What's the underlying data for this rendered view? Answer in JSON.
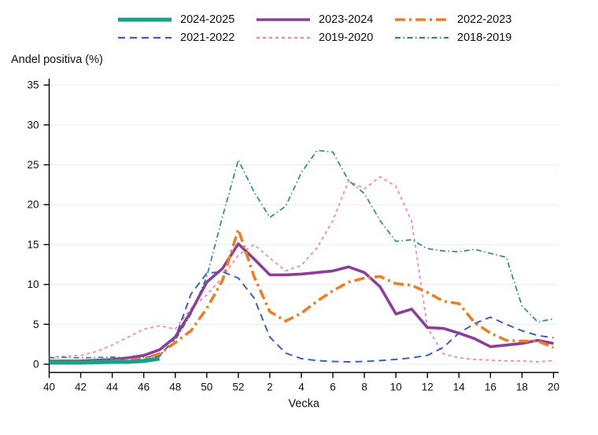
{
  "page": {
    "background": "#ffffff"
  },
  "chart_data": {
    "type": "line",
    "title": "Andel positiva (%)",
    "xlabel": "Vecka",
    "ylim": [
      0,
      35
    ],
    "yticks": [
      0,
      5,
      10,
      15,
      20,
      25,
      30,
      35
    ],
    "grid": "horizontal",
    "grid_color": "#e3eef3",
    "axis_color": "#000000",
    "legend_position": "top",
    "x_categories": [
      "40",
      "41",
      "42",
      "43",
      "44",
      "45",
      "46",
      "47",
      "48",
      "49",
      "50",
      "51",
      "52",
      "1",
      "2",
      "3",
      "4",
      "5",
      "6",
      "7",
      "8",
      "9",
      "10",
      "11",
      "12",
      "13",
      "14",
      "15",
      "16",
      "17",
      "18",
      "19",
      "20"
    ],
    "x_tick_labels": [
      "40",
      "42",
      "44",
      "46",
      "48",
      "50",
      "52",
      "2",
      "4",
      "6",
      "8",
      "10",
      "12",
      "14",
      "16",
      "18",
      "20"
    ],
    "series": [
      {
        "name": "2024-2025",
        "color": "#16A286",
        "dash": "solid",
        "width": 5,
        "values": [
          0.2,
          0.2,
          0.2,
          0.25,
          0.3,
          0.3,
          0.4,
          0.7,
          null,
          null,
          null,
          null,
          null,
          null,
          null,
          null,
          null,
          null,
          null,
          null,
          null,
          null,
          null,
          null,
          null,
          null,
          null,
          null,
          null,
          null,
          null,
          null,
          null
        ]
      },
      {
        "name": "2023-2024",
        "color": "#8C3F99",
        "dash": "solid",
        "width": 3.6,
        "values": [
          0.4,
          0.4,
          0.4,
          0.5,
          0.6,
          0.8,
          1.1,
          1.8,
          3.4,
          6.6,
          10.3,
          12.0,
          15.1,
          13.2,
          11.2,
          11.2,
          11.3,
          11.5,
          11.7,
          12.2,
          11.5,
          9.7,
          6.3,
          6.9,
          4.6,
          4.5,
          3.9,
          3.2,
          2.2,
          2.4,
          2.6,
          3.0,
          2.6
        ]
      },
      {
        "name": "2022-2023",
        "color": "#EF7D22",
        "dash": "13 5 3 5",
        "width": 3.6,
        "values": [
          0.3,
          0.3,
          0.3,
          0.35,
          0.4,
          0.5,
          0.7,
          1.3,
          2.7,
          4.2,
          7.0,
          10.5,
          16.9,
          11.0,
          6.6,
          5.4,
          6.4,
          7.9,
          9.2,
          10.3,
          10.8,
          11.0,
          10.1,
          9.9,
          9.0,
          7.9,
          7.6,
          5.2,
          3.9,
          3.0,
          2.9,
          2.9,
          2.1
        ]
      },
      {
        "name": "2021-2022",
        "color": "#3D5FBF",
        "dash": "9 6",
        "width": 2,
        "values": [
          0.3,
          0.3,
          0.3,
          0.3,
          0.35,
          0.4,
          0.55,
          1.0,
          3.3,
          8.8,
          11.4,
          11.6,
          10.8,
          8.3,
          3.4,
          1.4,
          0.7,
          0.45,
          0.35,
          0.3,
          0.35,
          0.45,
          0.6,
          0.8,
          1.1,
          2.1,
          3.9,
          5.1,
          5.9,
          5.0,
          4.2,
          3.6,
          3.3
        ]
      },
      {
        "name": "2019-2020",
        "color": "#F77FB7",
        "dash": "4 4",
        "width": 1.7,
        "values": [
          0.9,
          1.0,
          1.1,
          1.6,
          2.4,
          3.4,
          4.4,
          4.8,
          4.4,
          7.0,
          8.7,
          10.9,
          13.7,
          15.0,
          13.3,
          11.7,
          12.4,
          14.6,
          18.0,
          23.0,
          22.0,
          23.5,
          22.3,
          17.9,
          4.6,
          1.3,
          0.8,
          0.6,
          0.5,
          0.4,
          0.4,
          0.3,
          0.45
        ]
      },
      {
        "name": "2018-2019",
        "color": "#2A8A85",
        "dash": "7 3.5 1.5 3.5",
        "width": 1.7,
        "values": [
          0.8,
          0.85,
          0.8,
          0.85,
          0.9,
          0.8,
          0.85,
          1.1,
          3.0,
          6.3,
          11.0,
          18.5,
          25.6,
          21.6,
          18.4,
          19.8,
          24.0,
          26.8,
          26.6,
          23.0,
          21.4,
          18.0,
          15.4,
          15.6,
          14.5,
          14.2,
          14.1,
          14.4,
          13.9,
          13.4,
          7.3,
          5.3,
          5.7
        ]
      }
    ],
    "draw_order": [
      "2019-2020",
      "2021-2022",
      "2018-2019",
      "2023-2024",
      "2022-2023",
      "2024-2025"
    ]
  }
}
